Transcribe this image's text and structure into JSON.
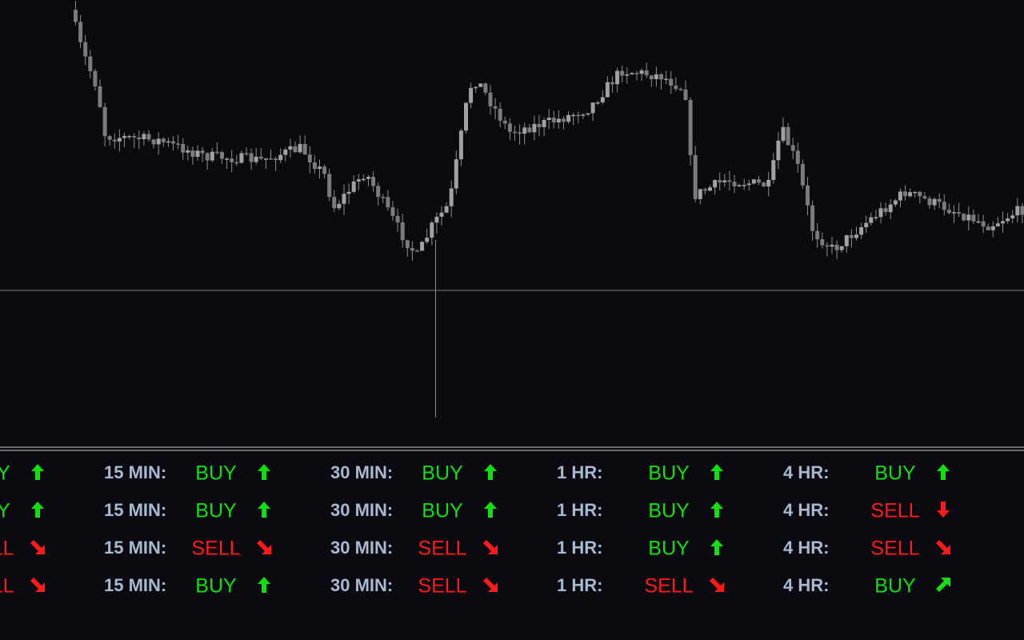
{
  "panel": {
    "columns": [
      {
        "signals": [
          {
            "signal": "BUY",
            "arrow": "up"
          },
          {
            "signal": "BUY",
            "arrow": "up"
          },
          {
            "signal": "SELL",
            "arrow": "down-right"
          },
          {
            "signal": "SELL",
            "arrow": "down-right"
          }
        ]
      },
      {
        "label": "15 MIN:",
        "signals": [
          {
            "signal": "BUY",
            "arrow": "up"
          },
          {
            "signal": "BUY",
            "arrow": "up"
          },
          {
            "signal": "SELL",
            "arrow": "down-right"
          },
          {
            "signal": "BUY",
            "arrow": "up"
          }
        ]
      },
      {
        "label": "30 MIN:",
        "signals": [
          {
            "signal": "BUY",
            "arrow": "up"
          },
          {
            "signal": "BUY",
            "arrow": "up"
          },
          {
            "signal": "SELL",
            "arrow": "down-right"
          },
          {
            "signal": "SELL",
            "arrow": "down-right"
          }
        ]
      },
      {
        "label": "1 HR:",
        "signals": [
          {
            "signal": "BUY",
            "arrow": "up"
          },
          {
            "signal": "BUY",
            "arrow": "up"
          },
          {
            "signal": "BUY",
            "arrow": "up"
          },
          {
            "signal": "SELL",
            "arrow": "down-right"
          }
        ]
      },
      {
        "label": "4 HR:",
        "signals": [
          {
            "signal": "BUY",
            "arrow": "up"
          },
          {
            "signal": "SELL",
            "arrow": "down"
          },
          {
            "signal": "SELL",
            "arrow": "down-right"
          },
          {
            "signal": "BUY",
            "arrow": "up-right"
          }
        ]
      }
    ]
  }
}
